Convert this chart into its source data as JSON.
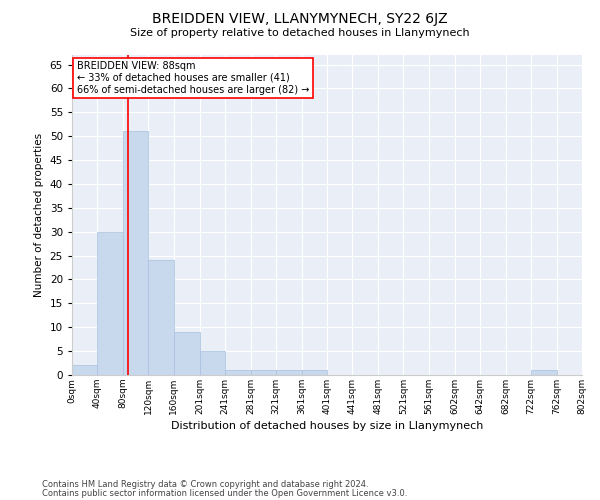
{
  "title": "BREIDDEN VIEW, LLANYMYNECH, SY22 6JZ",
  "subtitle": "Size of property relative to detached houses in Llanymynech",
  "xlabel": "Distribution of detached houses by size in Llanymynech",
  "ylabel": "Number of detached properties",
  "footnote1": "Contains HM Land Registry data © Crown copyright and database right 2024.",
  "footnote2": "Contains public sector information licensed under the Open Government Licence v3.0.",
  "annotation_line1": "BREIDDEN VIEW: 88sqm",
  "annotation_line2": "← 33% of detached houses are smaller (41)",
  "annotation_line3": "66% of semi-detached houses are larger (82) →",
  "property_size": 88,
  "bar_color": "#c8d9ee",
  "bar_edge_color": "#a8c0de",
  "vline_color": "red",
  "background_color": "#eaeff7",
  "bin_edges": [
    0,
    40,
    80,
    120,
    160,
    201,
    241,
    281,
    321,
    361,
    401,
    441,
    481,
    521,
    561,
    602,
    642,
    682,
    722,
    762,
    802
  ],
  "bin_labels": [
    "0sqm",
    "40sqm",
    "80sqm",
    "120sqm",
    "160sqm",
    "201sqm",
    "241sqm",
    "281sqm",
    "321sqm",
    "361sqm",
    "401sqm",
    "441sqm",
    "481sqm",
    "521sqm",
    "561sqm",
    "602sqm",
    "642sqm",
    "682sqm",
    "722sqm",
    "762sqm",
    "802sqm"
  ],
  "counts": [
    2,
    30,
    51,
    24,
    9,
    5,
    1,
    1,
    1,
    1,
    0,
    0,
    0,
    0,
    0,
    0,
    0,
    0,
    1,
    0
  ],
  "ylim": [
    0,
    67
  ],
  "yticks": [
    0,
    5,
    10,
    15,
    20,
    25,
    30,
    35,
    40,
    45,
    50,
    55,
    60,
    65
  ]
}
